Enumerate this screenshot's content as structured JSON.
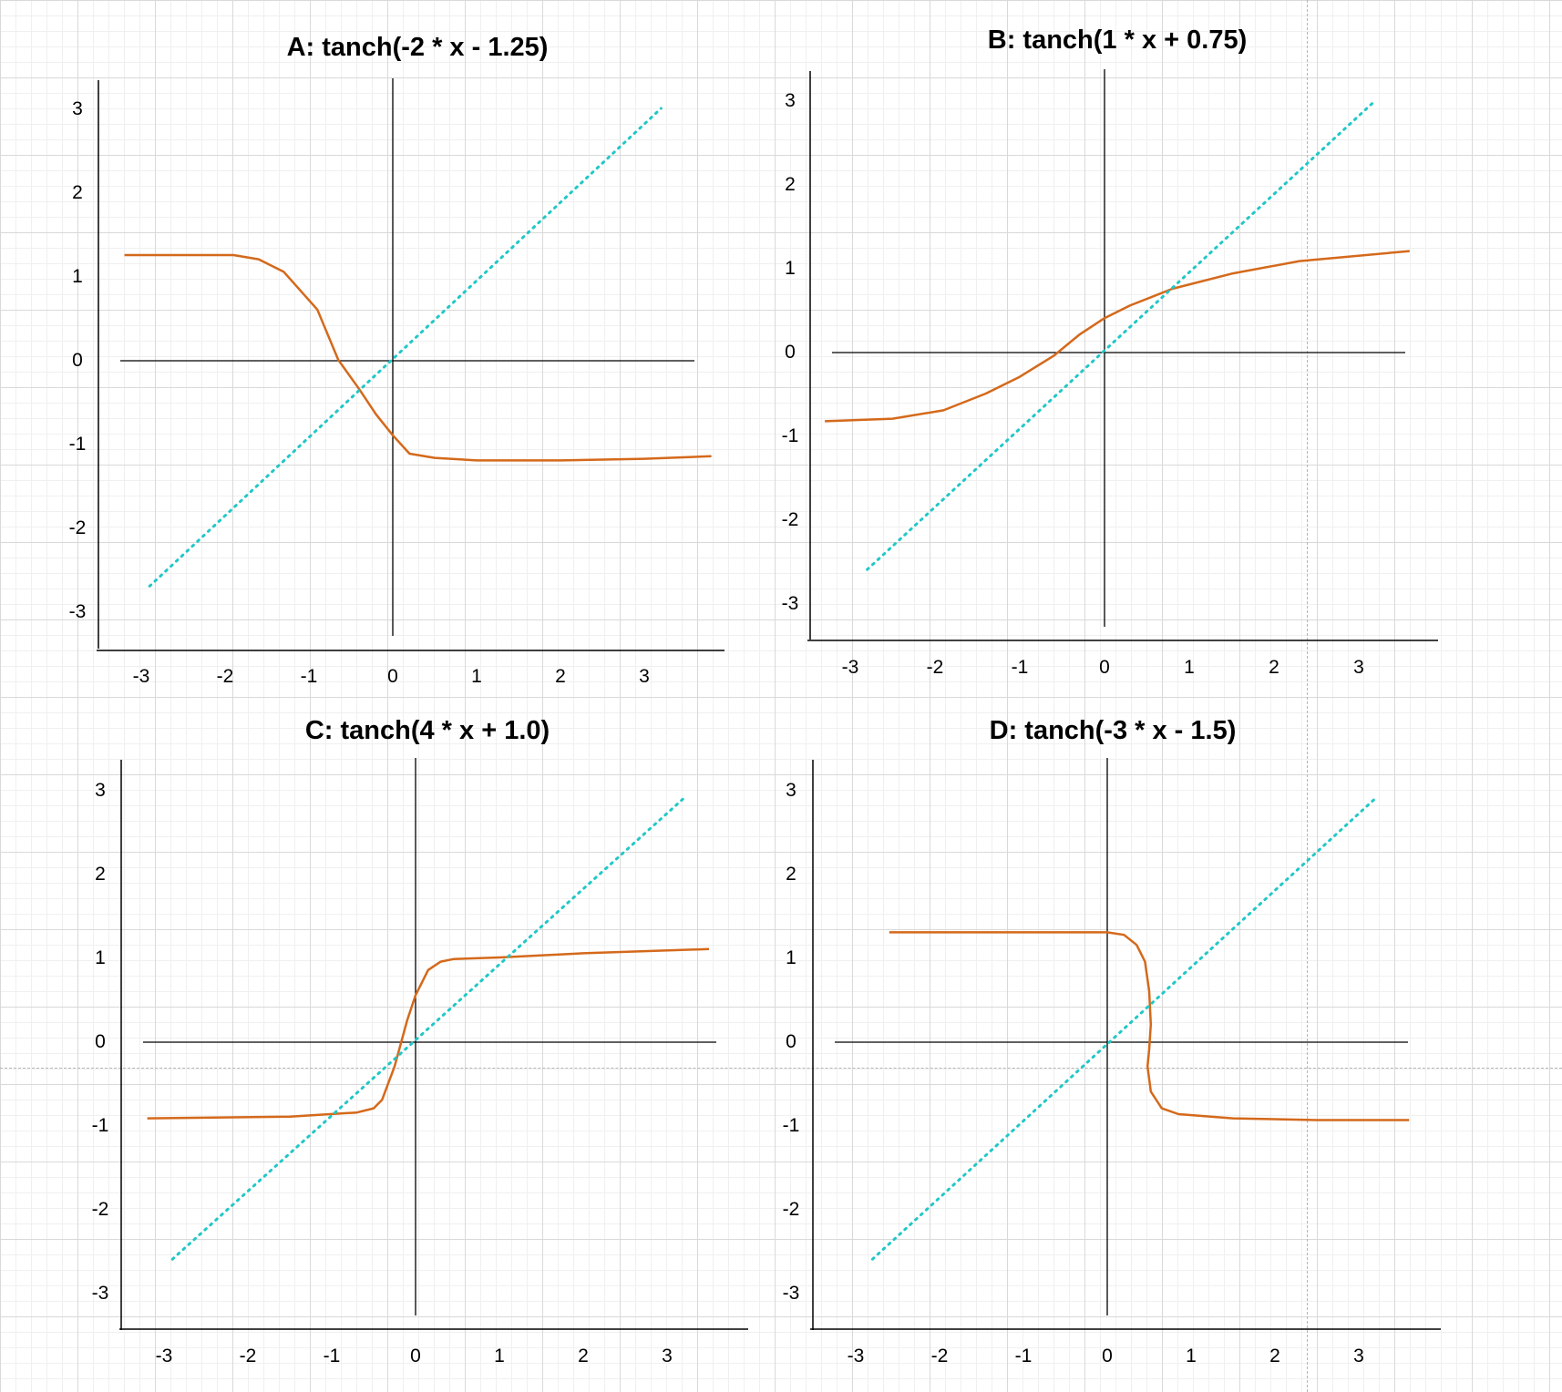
{
  "chart_data": [
    {
      "panel": "A",
      "type": "line",
      "title": "A: tanch(-2 * x - 1.25)",
      "xticks": [
        "-3",
        "-2",
        "-1",
        "0",
        "1",
        "2",
        "3"
      ],
      "yticks": [
        "3",
        "2",
        "1",
        "0",
        "-1",
        "-2",
        "-3"
      ],
      "xlim": [
        -3.3,
        3.9
      ],
      "ylim": [
        -3.5,
        3.2
      ],
      "series": [
        {
          "name": "tanch(-2 * x - 1.25)",
          "color": "#d4691b",
          "style": "solid",
          "x": [
            -3.2,
            -1.9,
            -1.6,
            -1.3,
            -0.9,
            -0.65,
            -0.4,
            -0.2,
            0.0,
            0.2,
            0.5,
            1.0,
            2.0,
            3.0,
            3.8
          ],
          "y": [
            1.25,
            1.25,
            1.2,
            1.05,
            0.6,
            0.0,
            -0.35,
            -0.65,
            -0.9,
            -1.12,
            -1.17,
            -1.2,
            -1.2,
            -1.18,
            -1.15
          ]
        },
        {
          "name": "y = x",
          "color": "#22c7c7",
          "style": "dotted",
          "x": [
            -2.9,
            3.2
          ],
          "y": [
            -2.7,
            3.0
          ]
        }
      ]
    },
    {
      "panel": "B",
      "type": "line",
      "title": "B: tanch(1 * x + 0.75)",
      "xticks": [
        "-3",
        "-2",
        "-1",
        "0",
        "1",
        "2",
        "3"
      ],
      "yticks": [
        "3",
        "2",
        "1",
        "0",
        "-1",
        "-2",
        "-3"
      ],
      "xlim": [
        -3.3,
        3.9
      ],
      "ylim": [
        -3.5,
        3.2
      ],
      "series": [
        {
          "name": "tanch(1 * x + 0.75)",
          "color": "#d4691b",
          "style": "solid",
          "x": [
            -3.3,
            -2.5,
            -1.9,
            -1.4,
            -1.0,
            -0.6,
            -0.3,
            0.0,
            0.3,
            0.8,
            1.5,
            2.3,
            3.6
          ],
          "y": [
            -0.83,
            -0.8,
            -0.7,
            -0.5,
            -0.3,
            -0.05,
            0.2,
            0.4,
            0.55,
            0.75,
            0.93,
            1.08,
            1.2
          ]
        },
        {
          "name": "y = x",
          "color": "#22c7c7",
          "style": "dotted",
          "x": [
            -2.8,
            3.2
          ],
          "y": [
            -2.6,
            3.0
          ]
        }
      ]
    },
    {
      "panel": "C",
      "type": "line",
      "title": "C: tanch(4 * x + 1.0)",
      "xticks": [
        "-3",
        "-2",
        "-1",
        "0",
        "1",
        "2",
        "3"
      ],
      "yticks": [
        "3",
        "2",
        "1",
        "0",
        "-1",
        "-2",
        "-3"
      ],
      "xlim": [
        -3.3,
        3.9
      ],
      "ylim": [
        -3.5,
        3.2
      ],
      "series": [
        {
          "name": "tanch(4 * x + 1.0)",
          "color": "#d4691b",
          "style": "solid",
          "x": [
            -3.2,
            -1.5,
            -0.7,
            -0.5,
            -0.4,
            -0.25,
            -0.1,
            0.0,
            0.15,
            0.3,
            0.45,
            1.0,
            2.0,
            3.5
          ],
          "y": [
            -0.92,
            -0.9,
            -0.85,
            -0.8,
            -0.7,
            -0.3,
            0.25,
            0.55,
            0.85,
            0.95,
            0.98,
            1.0,
            1.05,
            1.1
          ]
        },
        {
          "name": "y = x",
          "color": "#22c7c7",
          "style": "dotted",
          "x": [
            -2.9,
            3.2
          ],
          "y": [
            -2.6,
            2.9
          ]
        }
      ]
    },
    {
      "panel": "D",
      "type": "line",
      "title": "D: tanch(-3 * x - 1.5)",
      "xticks": [
        "-3",
        "-2",
        "-1",
        "0",
        "1",
        "2",
        "3"
      ],
      "yticks": [
        "3",
        "2",
        "1",
        "0",
        "-1",
        "-2",
        "-3"
      ],
      "xlim": [
        -3.3,
        3.9
      ],
      "ylim": [
        -3.5,
        3.2
      ],
      "series": [
        {
          "name": "tanch(-3 * x - 1.5)",
          "color": "#d4691b",
          "style": "solid",
          "x": [
            -2.6,
            0.0,
            0.2,
            0.35,
            0.45,
            0.5,
            0.52,
            0.5,
            0.48,
            0.52,
            0.65,
            0.85,
            1.5,
            2.5,
            3.6
          ],
          "y": [
            1.3,
            1.3,
            1.27,
            1.15,
            0.95,
            0.6,
            0.2,
            -0.1,
            -0.3,
            -0.6,
            -0.8,
            -0.87,
            -0.92,
            -0.94,
            -0.94
          ]
        },
        {
          "name": "y = x",
          "color": "#22c7c7",
          "style": "dotted",
          "x": [
            -2.8,
            3.2
          ],
          "y": [
            -2.6,
            2.9
          ]
        }
      ]
    }
  ]
}
